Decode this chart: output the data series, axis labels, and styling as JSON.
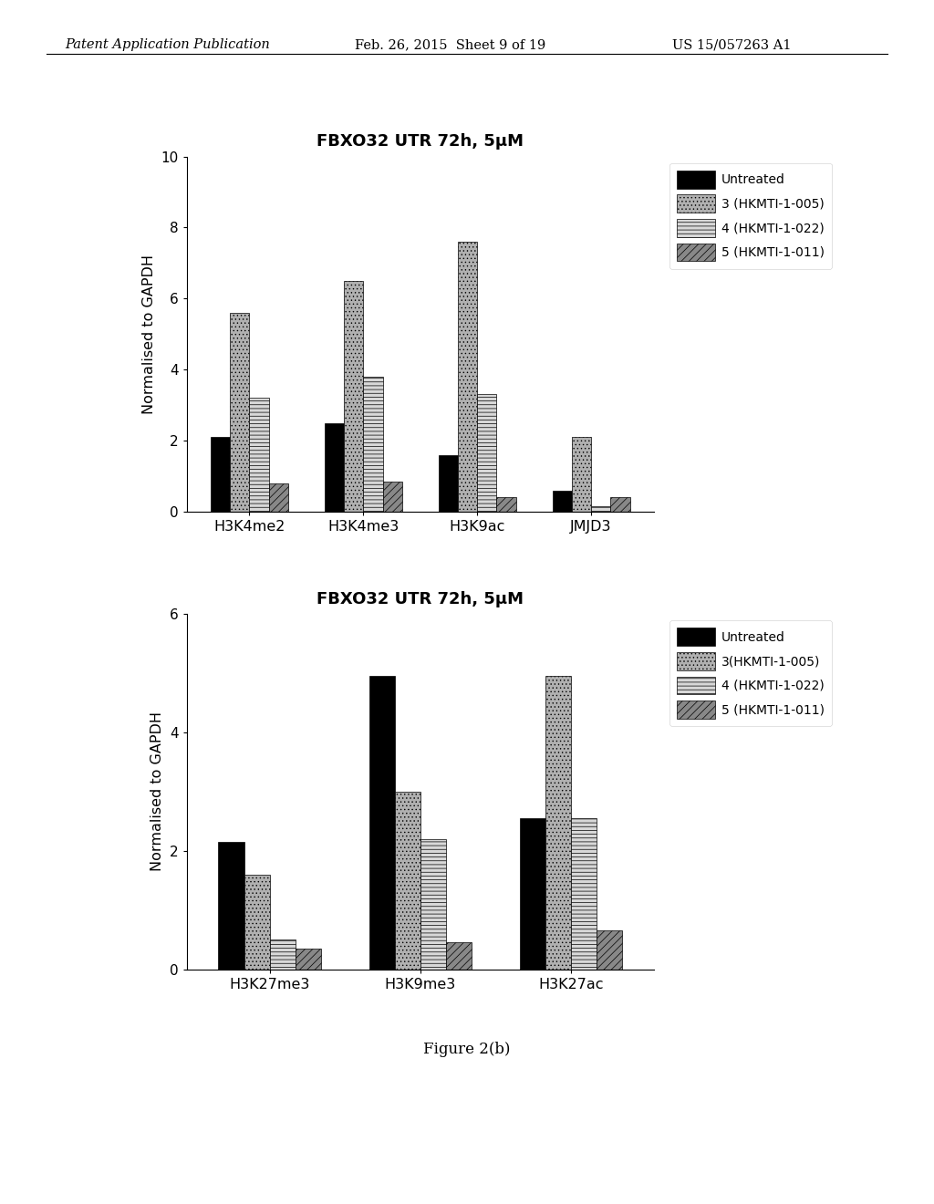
{
  "chart1": {
    "title": "FBXO32 UTR 72h, 5μM",
    "ylabel": "Normalised to GAPDH",
    "ylim": [
      0,
      10
    ],
    "yticks": [
      0,
      2,
      4,
      6,
      8,
      10
    ],
    "categories": [
      "H3K4me2",
      "H3K4me3",
      "H3K9ac",
      "JMJD3"
    ],
    "series": {
      "Untreated": [
        2.1,
        2.5,
        1.6,
        0.6
      ],
      "3 (HKMTI-1-005)": [
        5.6,
        6.5,
        7.6,
        2.1
      ],
      "4 (HKMTI-1-022)": [
        3.2,
        3.8,
        3.3,
        0.15
      ],
      "5 (HKMTI-1-011)": [
        0.8,
        0.85,
        0.4,
        0.4
      ]
    }
  },
  "chart2": {
    "title": "FBXO32 UTR 72h, 5μM",
    "ylabel": "Normalised to GAPDH",
    "ylim": [
      0,
      6
    ],
    "yticks": [
      0,
      2,
      4,
      6
    ],
    "categories": [
      "H3K27me3",
      "H3K9me3",
      "H3K27ac"
    ],
    "series": {
      "Untreated": [
        2.15,
        4.95,
        2.55
      ],
      "3(HKMTI-1-005)": [
        1.6,
        3.0,
        4.95
      ],
      "4 (HKMTI-1-022)": [
        0.5,
        2.2,
        2.55
      ],
      "5 (HKMTI-1-011)": [
        0.35,
        0.45,
        0.65
      ]
    }
  },
  "figure_label": "Figure 2(b)",
  "header_left": "Patent Application Publication",
  "header_center": "Feb. 26, 2015  Sheet 9 of 19",
  "header_right": "US 15/057263 A1",
  "colors": [
    "#000000",
    "#b0b0b0",
    "#d8d8d8",
    "#888888"
  ],
  "legend1": [
    "Untreated",
    "3 (HKMTI-1-005)",
    "4 (HKMTI-1-022)",
    "5 (HKMTI-1-011)"
  ],
  "legend2": [
    "Untreated",
    "3(HKMTI-1-005)",
    "4 (HKMTI-1-022)",
    "5 (HKMTI-1-011)"
  ]
}
